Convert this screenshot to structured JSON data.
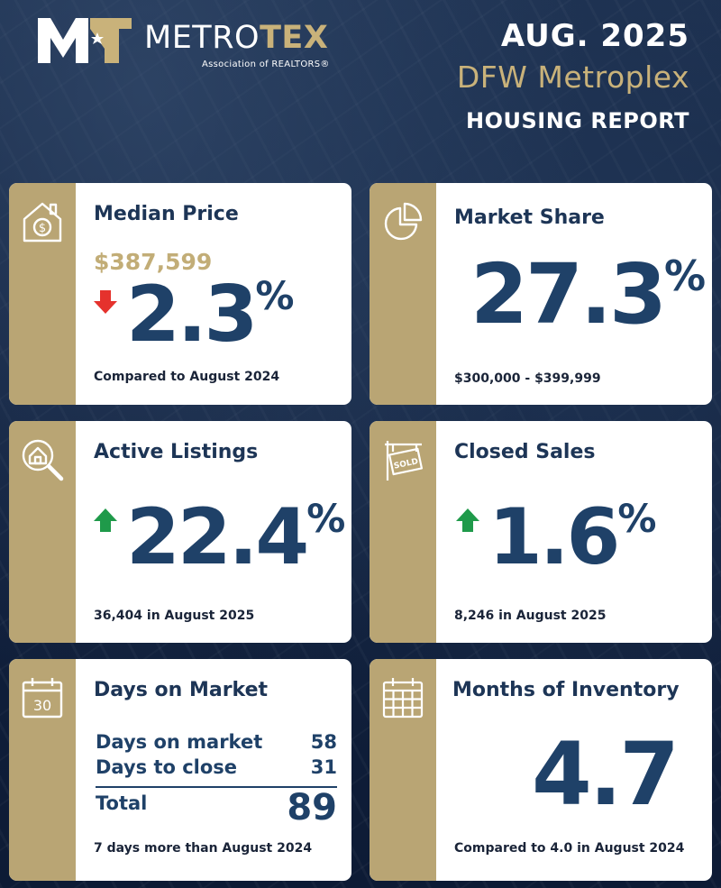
{
  "brand": {
    "word_a": "METRO",
    "word_b": "TEX",
    "subtitle": "Association of REALTORS®",
    "logo_letters": "MT"
  },
  "header": {
    "date": "AUG. 2025",
    "region": "DFW Metroplex",
    "report": "HOUSING REPORT"
  },
  "colors": {
    "navy": "#1f4168",
    "gold": "#b9a574",
    "down_arrow": "#e5322d",
    "up_arrow": "#1f9a4a"
  },
  "cards": {
    "median": {
      "title": "Median Price",
      "icon": "house-dollar-icon",
      "price": "$387,599",
      "direction": "down",
      "change": "2.3",
      "unit": "%",
      "footnote": "Compared to August 2024"
    },
    "share": {
      "title": "Market Share",
      "icon": "pie-chart-icon",
      "value": "27.3",
      "unit": "%",
      "footnote": "$300,000 - $399,999"
    },
    "active": {
      "title": "Active Listings",
      "icon": "house-magnifier-icon",
      "direction": "up",
      "change": "22.4",
      "unit": "%",
      "footnote": "36,404 in August 2025"
    },
    "closed": {
      "title": "Closed Sales",
      "icon": "sold-sign-icon",
      "sold_text": "SOLD",
      "direction": "up",
      "change": "1.6",
      "unit": "%",
      "footnote": "8,246  in August 2025"
    },
    "days": {
      "title": "Days on Market",
      "icon": "calendar-30-icon",
      "calendar_number": "30",
      "rows": [
        {
          "label": "Days on market",
          "value": "58"
        },
        {
          "label": "Days to close",
          "value": "31"
        }
      ],
      "total_label": "Total",
      "total_value": "89",
      "footnote": "7 days more than August 2024"
    },
    "months": {
      "title": "Months of Inventory",
      "icon": "calendar-grid-icon",
      "value": "4.7",
      "footnote": "Compared to 4.0 in August 2024"
    }
  }
}
